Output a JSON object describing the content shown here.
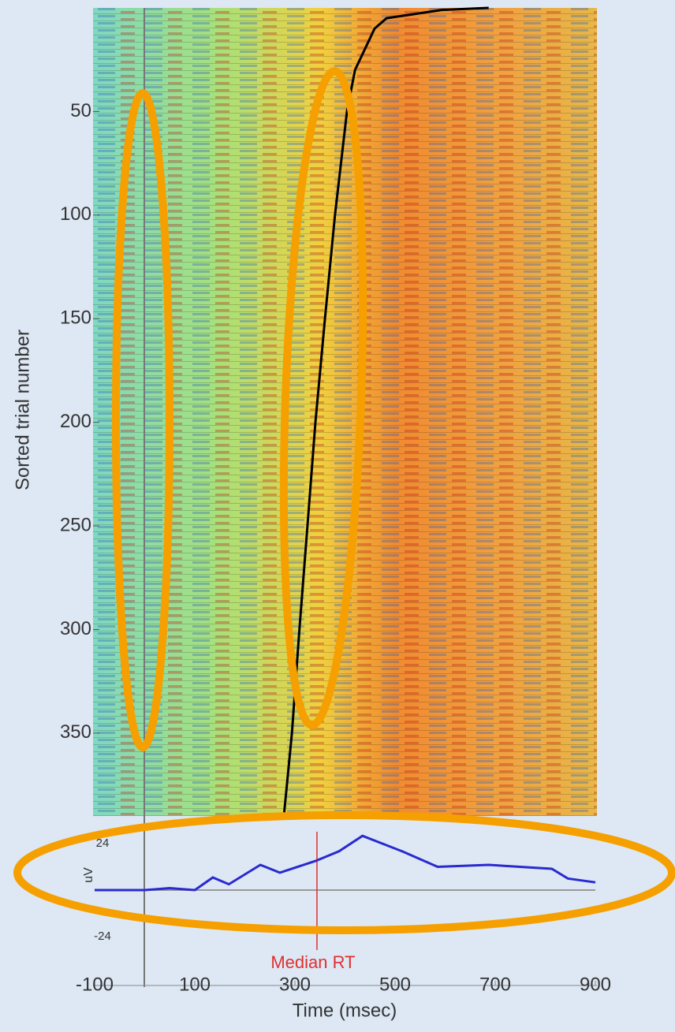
{
  "chart_data": [
    {
      "type": "rtimage",
      "ylabel": "Sorted trial number",
      "ylim": [
        0,
        390
      ],
      "yticks": [
        50,
        100,
        150,
        200,
        250,
        300,
        350
      ],
      "xlim": [
        -100,
        900
      ],
      "x": [
        0,
        1,
        5,
        10,
        30,
        50,
        100,
        150,
        200,
        250,
        300,
        350,
        390
      ],
      "values": [
        687,
        593,
        483,
        459,
        420,
        404,
        380,
        360,
        341,
        325,
        309,
        294,
        278
      ],
      "color": "#000000"
    },
    {
      "type": "line",
      "ylabel": "uV",
      "xlabel": "Time (msec)",
      "ylim": [
        -24,
        24
      ],
      "yticks": [
        -24,
        24
      ],
      "xlim": [
        -100,
        900
      ],
      "xticks": [
        -100,
        100,
        300,
        500,
        700,
        900
      ],
      "x": [
        -100,
        0,
        50,
        100,
        136,
        168,
        231,
        270,
        341,
        388,
        435,
        514,
        585,
        687,
        813,
        845,
        900
      ],
      "values": [
        0,
        0,
        1,
        0,
        6.5,
        3,
        13,
        9,
        15,
        20,
        28,
        20,
        12,
        13,
        11,
        6,
        4
      ],
      "color": "#2a2ad0",
      "annotation": {
        "text": "Median RT",
        "x": 344,
        "color": "#e03030"
      }
    }
  ]
}
